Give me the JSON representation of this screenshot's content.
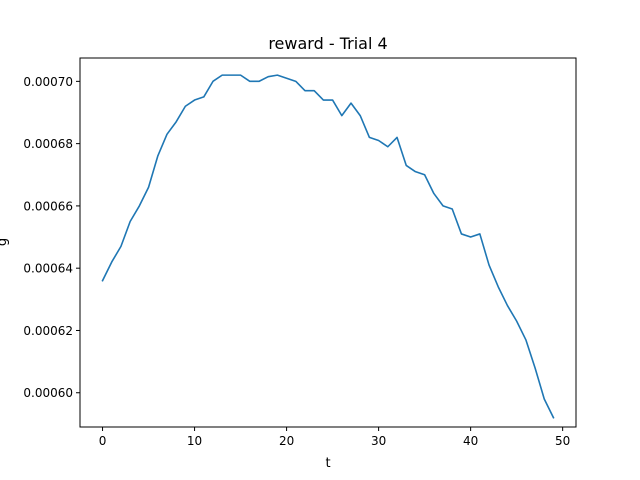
{
  "chart_data": {
    "type": "line",
    "title": "reward - Trial 4",
    "xlabel": "t",
    "ylabel": "g",
    "xlim": [
      -2.45,
      51.45
    ],
    "ylim": [
      0.000589,
      0.0007075
    ],
    "grid": false,
    "legend": "none",
    "xticks": [
      0,
      10,
      20,
      30,
      40,
      50
    ],
    "xtick_labels": [
      "0",
      "10",
      "20",
      "30",
      "40",
      "50"
    ],
    "yticks": [
      0.0006,
      0.00062,
      0.00064,
      0.00066,
      0.00068,
      0.0007
    ],
    "ytick_labels": [
      "0.00060",
      "0.00062",
      "0.00064",
      "0.00066",
      "0.00068",
      "0.00070"
    ],
    "series": [
      {
        "name": "",
        "color": "#1f77b4",
        "x": [
          0,
          1,
          2,
          3,
          4,
          5,
          6,
          7,
          8,
          9,
          10,
          11,
          12,
          13,
          14,
          15,
          16,
          17,
          18,
          19,
          20,
          21,
          22,
          23,
          24,
          25,
          26,
          27,
          28,
          29,
          30,
          31,
          32,
          33,
          34,
          35,
          36,
          37,
          38,
          39,
          40,
          41,
          42,
          43,
          44,
          45,
          46,
          47,
          48,
          49
        ],
        "y": [
          0.000636,
          0.000642,
          0.000647,
          0.000655,
          0.00066,
          0.000666,
          0.000676,
          0.000683,
          0.000687,
          0.000692,
          0.000694,
          0.000695,
          0.0007,
          0.000702,
          0.000702,
          0.000702,
          0.0007,
          0.0007,
          0.0007015,
          0.000702,
          0.000701,
          0.0007,
          0.000697,
          0.000697,
          0.000694,
          0.000694,
          0.000689,
          0.000693,
          0.000689,
          0.000682,
          0.000681,
          0.000679,
          0.000682,
          0.000673,
          0.000671,
          0.00067,
          0.000664,
          0.00066,
          0.000659,
          0.000651,
          0.00065,
          0.000651,
          0.000641,
          0.000634,
          0.000628,
          0.000623,
          0.000617,
          0.000608,
          0.000598,
          0.000592
        ]
      }
    ]
  }
}
